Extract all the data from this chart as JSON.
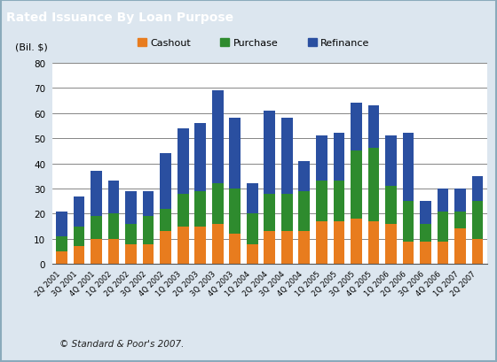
{
  "title": "Rated Issuance By Loan Purpose",
  "title_bg": "#5b8099",
  "ylabel": "(Bil. $)",
  "ylim": [
    0,
    80
  ],
  "yticks": [
    0,
    10,
    20,
    30,
    40,
    50,
    60,
    70,
    80
  ],
  "footer": "© Standard & Poor's 2007.",
  "legend_labels": [
    "Cashout",
    "Purchase",
    "Refinance"
  ],
  "bar_color_cashout": "#e87c1e",
  "bar_color_purchase": "#2e8b2e",
  "bar_color_refinance": "#2a4fa0",
  "bg_color": "#dce6ef",
  "plot_bg": "#ffffff",
  "outer_bg": "#dce6ef",
  "categories": [
    "2Q 2001",
    "3Q 2001",
    "4Q 2001",
    "1Q 2002",
    "2Q 2002",
    "3Q 2002",
    "4Q 2002",
    "1Q 2003",
    "2Q 2003",
    "3Q 2003",
    "4Q 2003",
    "1Q 2004",
    "2Q 2004",
    "3Q 2004",
    "4Q 2004",
    "1Q 2005",
    "2Q 2005",
    "3Q 2005",
    "4Q 2005",
    "1Q 2006",
    "2Q 2006",
    "3Q 2006",
    "4Q 2006",
    "1Q 2007",
    "2Q 2007"
  ],
  "cashout": [
    5,
    7,
    10,
    10,
    8,
    8,
    13,
    15,
    15,
    16,
    12,
    8,
    13,
    13,
    13,
    17,
    17,
    18,
    17,
    16,
    9,
    9,
    9,
    14,
    10
  ],
  "purchase": [
    6,
    8,
    9,
    10,
    8,
    11,
    9,
    13,
    14,
    16,
    18,
    12,
    15,
    15,
    16,
    16,
    16,
    27,
    29,
    15,
    16,
    7,
    12,
    7,
    15
  ],
  "refinance": [
    10,
    12,
    18,
    13,
    13,
    10,
    22,
    26,
    27,
    37,
    28,
    12,
    33,
    30,
    12,
    18,
    19,
    19,
    17,
    20,
    27,
    9,
    9,
    9,
    10
  ]
}
